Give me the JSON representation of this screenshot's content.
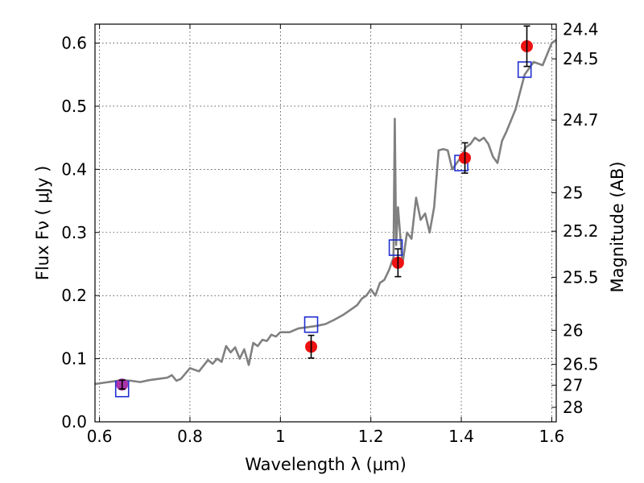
{
  "chart_data": {
    "type": "scatter",
    "xlabel": "Wavelength  λ (μm)",
    "ylabel": "Flux  Fν  ( μJy )",
    "y2label": "Magnitude (AB)",
    "xlim": [
      0.59,
      1.61
    ],
    "ylim": [
      0.0,
      0.63
    ],
    "grid": true,
    "x_ticks": [
      {
        "value": 0.6,
        "label": "0.6"
      },
      {
        "value": 0.8,
        "label": "0.8"
      },
      {
        "value": 1.0,
        "label": "1"
      },
      {
        "value": 1.2,
        "label": "1.2"
      },
      {
        "value": 1.4,
        "label": "1.4"
      },
      {
        "value": 1.6,
        "label": "1.6"
      }
    ],
    "y_ticks": [
      {
        "value": 0.0,
        "label": "0.0"
      },
      {
        "value": 0.1,
        "label": "0.1"
      },
      {
        "value": 0.2,
        "label": "0.2"
      },
      {
        "value": 0.3,
        "label": "0.3"
      },
      {
        "value": 0.4,
        "label": "0.4"
      },
      {
        "value": 0.5,
        "label": "0.5"
      },
      {
        "value": 0.6,
        "label": "0.6"
      }
    ],
    "y2_ticks": [
      {
        "flux": 0.622,
        "label": "24.4"
      },
      {
        "flux": 0.575,
        "label": "24.5"
      },
      {
        "flux": 0.478,
        "label": "24.7"
      },
      {
        "flux": 0.363,
        "label": "25"
      },
      {
        "flux": 0.302,
        "label": "25.2"
      },
      {
        "flux": 0.229,
        "label": "25.5"
      },
      {
        "flux": 0.145,
        "label": "26"
      },
      {
        "flux": 0.091,
        "label": "26.5"
      },
      {
        "flux": 0.058,
        "label": "27"
      },
      {
        "flux": 0.023,
        "label": "28"
      }
    ],
    "model_spectrum": {
      "color": "#808080",
      "x": [
        0.59,
        0.61,
        0.63,
        0.65,
        0.67,
        0.69,
        0.71,
        0.73,
        0.75,
        0.76,
        0.77,
        0.78,
        0.8,
        0.82,
        0.84,
        0.85,
        0.86,
        0.87,
        0.88,
        0.89,
        0.9,
        0.91,
        0.92,
        0.93,
        0.94,
        0.95,
        0.96,
        0.97,
        0.98,
        0.99,
        1.0,
        1.02,
        1.04,
        1.06,
        1.08,
        1.1,
        1.12,
        1.14,
        1.15,
        1.16,
        1.17,
        1.18,
        1.19,
        1.2,
        1.21,
        1.22,
        1.23,
        1.24,
        1.25,
        1.253,
        1.256,
        1.26,
        1.27,
        1.28,
        1.29,
        1.3,
        1.31,
        1.32,
        1.33,
        1.34,
        1.35,
        1.36,
        1.37,
        1.38,
        1.39,
        1.4,
        1.41,
        1.42,
        1.43,
        1.44,
        1.45,
        1.46,
        1.47,
        1.48,
        1.49,
        1.5,
        1.52,
        1.54,
        1.56,
        1.58,
        1.6,
        1.61
      ],
      "y": [
        0.06,
        0.062,
        0.064,
        0.066,
        0.065,
        0.063,
        0.066,
        0.068,
        0.07,
        0.074,
        0.065,
        0.068,
        0.085,
        0.08,
        0.098,
        0.092,
        0.1,
        0.095,
        0.12,
        0.11,
        0.118,
        0.1,
        0.115,
        0.09,
        0.125,
        0.12,
        0.13,
        0.128,
        0.138,
        0.135,
        0.142,
        0.142,
        0.148,
        0.15,
        0.152,
        0.155,
        0.162,
        0.17,
        0.175,
        0.18,
        0.185,
        0.195,
        0.2,
        0.21,
        0.2,
        0.22,
        0.225,
        0.24,
        0.26,
        0.48,
        0.28,
        0.34,
        0.25,
        0.3,
        0.29,
        0.355,
        0.32,
        0.33,
        0.3,
        0.34,
        0.43,
        0.432,
        0.43,
        0.4,
        0.41,
        0.42,
        0.435,
        0.44,
        0.45,
        0.445,
        0.45,
        0.44,
        0.42,
        0.41,
        0.445,
        0.46,
        0.495,
        0.55,
        0.57,
        0.565,
        0.6,
        0.605
      ]
    },
    "series": [
      {
        "marker": "circle",
        "color": "#ee1111",
        "points": [
          {
            "x": 0.65,
            "y": 0.059,
            "err": 0.007,
            "color": "#aa33aa"
          },
          {
            "x": 1.068,
            "y": 0.119,
            "err": 0.018
          },
          {
            "x": 1.26,
            "y": 0.252,
            "err": 0.022
          },
          {
            "x": 1.408,
            "y": 0.418,
            "err": 0.024
          },
          {
            "x": 1.545,
            "y": 0.595,
            "err": 0.032
          }
        ]
      },
      {
        "marker": "square",
        "color": "#1f2fd0",
        "points": [
          {
            "x": 0.65,
            "y": 0.052
          },
          {
            "x": 1.068,
            "y": 0.154
          },
          {
            "x": 1.255,
            "y": 0.276
          },
          {
            "x": 1.4,
            "y": 0.41
          },
          {
            "x": 1.54,
            "y": 0.558
          }
        ]
      }
    ]
  }
}
